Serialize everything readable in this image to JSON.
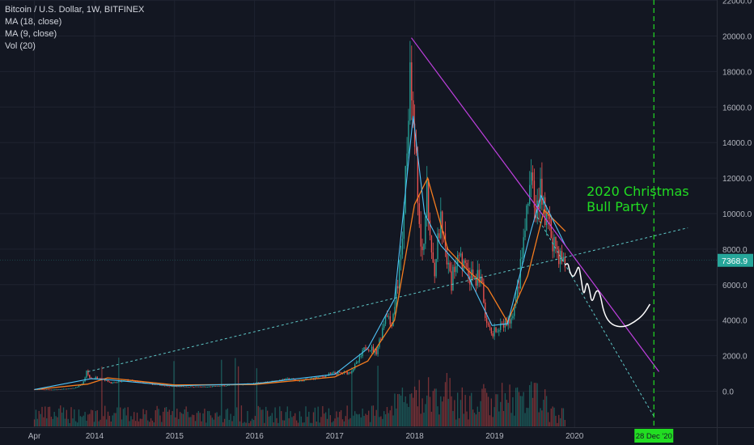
{
  "legend": {
    "title": "Bitcoin / U.S. Dollar, 1W, BITFINEX",
    "ma1": "MA (18, close)",
    "ma2": "MA (9, close)",
    "vol": "Vol (20)"
  },
  "colors": {
    "background": "#131722",
    "grid": "#1f2330",
    "axis_text": "#b2b5be",
    "up": "#26a69a",
    "down": "#ef5350",
    "ma18": "#f57c1f",
    "ma9": "#4fc3f7",
    "resistance": "#c040e0",
    "support": "#5ec6c6",
    "annotation": "#22dd22",
    "drawing": "#ffffff"
  },
  "chart_data": {
    "type": "candlestick",
    "ylim": [
      -1500,
      22500
    ],
    "y_ticks": [
      22000,
      20000,
      18000,
      16000,
      14000,
      12000,
      10000,
      8000,
      6000,
      4000,
      2000,
      0
    ],
    "y_tick_labels": [
      "22000.0",
      "20000.0",
      "18000.0",
      "16000.0",
      "14000.0",
      "12000.0",
      "10000.0",
      "8000.0",
      "6000.0",
      "4000.0",
      "2000.0",
      "0.0"
    ],
    "x_ticks": [
      {
        "label": "Apr",
        "date": "2013-04-01"
      },
      {
        "label": "2014",
        "date": "2014-01-01"
      },
      {
        "label": "2015",
        "date": "2015-01-01"
      },
      {
        "label": "2016",
        "date": "2016-01-01"
      },
      {
        "label": "2017",
        "date": "2017-01-01"
      },
      {
        "label": "2018",
        "date": "2018-01-01"
      },
      {
        "label": "2019",
        "date": "2019-01-01"
      },
      {
        "label": "2020",
        "date": "2020-01-01"
      }
    ],
    "price_label": "7368.9",
    "last_close": 7368.9,
    "price_points": [
      [
        "2013-04-01",
        100
      ],
      [
        "2013-07-01",
        90
      ],
      [
        "2013-10-01",
        160
      ],
      [
        "2013-11-15",
        450
      ],
      [
        "2013-12-01",
        1100
      ],
      [
        "2013-12-20",
        700
      ],
      [
        "2014-02-01",
        800
      ],
      [
        "2014-04-01",
        450
      ],
      [
        "2014-06-01",
        620
      ],
      [
        "2014-09-01",
        450
      ],
      [
        "2015-01-01",
        270
      ],
      [
        "2015-06-01",
        240
      ],
      [
        "2015-11-01",
        380
      ],
      [
        "2016-01-01",
        430
      ],
      [
        "2016-06-15",
        700
      ],
      [
        "2016-08-01",
        580
      ],
      [
        "2017-01-01",
        1000
      ],
      [
        "2017-03-15",
        1050
      ],
      [
        "2017-06-01",
        2600
      ],
      [
        "2017-07-15",
        2200
      ],
      [
        "2017-09-01",
        4700
      ],
      [
        "2017-09-20",
        3700
      ],
      [
        "2017-11-01",
        7000
      ],
      [
        "2017-12-17",
        19000
      ],
      [
        "2017-12-28",
        14000
      ],
      [
        "2018-01-10",
        15000
      ],
      [
        "2018-02-06",
        7500
      ],
      [
        "2018-03-05",
        11000
      ],
      [
        "2018-04-05",
        6800
      ],
      [
        "2018-05-05",
        9500
      ],
      [
        "2018-06-25",
        6000
      ],
      [
        "2018-07-25",
        8200
      ],
      [
        "2018-09-10",
        6300
      ],
      [
        "2018-11-10",
        6400
      ],
      [
        "2018-11-25",
        4000
      ],
      [
        "2018-12-15",
        3300
      ],
      [
        "2019-02-01",
        3500
      ],
      [
        "2019-04-01",
        4100
      ],
      [
        "2019-05-15",
        8000
      ],
      [
        "2019-06-26",
        12500
      ],
      [
        "2019-07-15",
        9500
      ],
      [
        "2019-08-05",
        11800
      ],
      [
        "2019-09-01",
        9700
      ],
      [
        "2019-10-20",
        8000
      ],
      [
        "2019-11-20",
        7100
      ]
    ],
    "ma18_points": [
      [
        "2013-04-01",
        90
      ],
      [
        "2013-12-01",
        400
      ],
      [
        "2014-03-01",
        750
      ],
      [
        "2015-01-01",
        350
      ],
      [
        "2016-01-01",
        380
      ],
      [
        "2017-01-01",
        800
      ],
      [
        "2017-06-01",
        1700
      ],
      [
        "2017-10-01",
        4000
      ],
      [
        "2017-12-31",
        10500
      ],
      [
        "2018-03-01",
        12000
      ],
      [
        "2018-06-01",
        8000
      ],
      [
        "2018-09-01",
        6800
      ],
      [
        "2018-12-01",
        5800
      ],
      [
        "2019-03-01",
        3900
      ],
      [
        "2019-06-01",
        6500
      ],
      [
        "2019-08-15",
        10200
      ],
      [
        "2019-11-20",
        9000
      ]
    ],
    "ma9_points": [
      [
        "2013-04-01",
        95
      ],
      [
        "2013-12-15",
        700
      ],
      [
        "2014-03-01",
        650
      ],
      [
        "2015-01-01",
        300
      ],
      [
        "2016-01-01",
        420
      ],
      [
        "2017-01-01",
        950
      ],
      [
        "2017-06-01",
        2400
      ],
      [
        "2017-10-01",
        5200
      ],
      [
        "2017-12-25",
        15500
      ],
      [
        "2018-02-15",
        10000
      ],
      [
        "2018-05-01",
        8200
      ],
      [
        "2018-09-01",
        6500
      ],
      [
        "2018-12-20",
        3700
      ],
      [
        "2019-03-01",
        3800
      ],
      [
        "2019-06-15",
        9000
      ],
      [
        "2019-08-01",
        11000
      ],
      [
        "2019-11-20",
        8200
      ]
    ],
    "resistance_line": [
      [
        "2017-12-17",
        19900
      ],
      [
        "2021-01-20",
        1100
      ]
    ],
    "support_line": [
      [
        "2013-12-01",
        1100
      ],
      [
        "2021-06-01",
        9200
      ]
    ],
    "support_line_2": [
      [
        "2019-07-15",
        9800
      ],
      [
        "2021-01-01",
        -1500
      ]
    ],
    "projection_path": [
      [
        "2019-11-20",
        7100
      ],
      [
        "2019-12-01",
        7300
      ],
      [
        "2019-12-10",
        6700
      ],
      [
        "2019-12-25",
        6400
      ],
      [
        "2020-01-08",
        6700
      ],
      [
        "2020-01-20",
        7100
      ],
      [
        "2020-01-30",
        6400
      ],
      [
        "2020-02-12",
        5300
      ],
      [
        "2020-02-25",
        6200
      ],
      [
        "2020-03-08",
        5800
      ],
      [
        "2020-03-20",
        4900
      ],
      [
        "2020-04-08",
        5700
      ],
      [
        "2020-04-25",
        5600
      ],
      [
        "2020-05-15",
        4300
      ],
      [
        "2020-06-20",
        3700
      ],
      [
        "2020-08-15",
        3600
      ],
      [
        "2020-10-01",
        3900
      ],
      [
        "2020-11-10",
        4300
      ],
      [
        "2020-12-10",
        4900
      ]
    ],
    "vertical_marker": {
      "date": "2020-12-28",
      "label": "28 Dec '20"
    },
    "annotation": {
      "lines": [
        "2020 Christmas",
        "Bull Party"
      ],
      "date": "2020-02-25",
      "price": 11000
    }
  }
}
